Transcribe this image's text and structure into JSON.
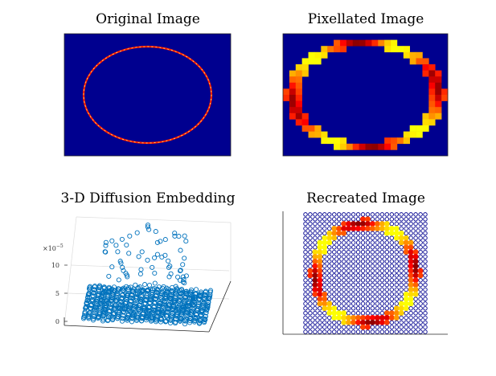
{
  "chart_data": [
    {
      "type": "heatmap",
      "title": "Original Image",
      "rows": 24,
      "cols": 32,
      "ring": {
        "center_col": 15.5,
        "center_row": 11.5,
        "radius_cols": 12.5,
        "radius_rows": 9.5
      },
      "colors": {
        "background": "#00008f",
        "ring": "#ff2000",
        "highlight": "#ffff80"
      }
    },
    {
      "type": "heatmap",
      "title": "Pixellated Image",
      "rows": 20,
      "cols": 26,
      "ring": {
        "center_col": 12.5,
        "center_row": 9.5,
        "radius_cols": 11.5,
        "radius_rows": 8.5
      },
      "colors": {
        "background": "#00008f",
        "ring": "#ff0000"
      }
    },
    {
      "type": "scatter3d",
      "title": "3-D Diffusion Embedding",
      "z_exponent_label": "×10",
      "z_exponent_power": "−5",
      "z_ticks": [
        0,
        5,
        10
      ],
      "zlim": [
        0,
        13
      ],
      "marker_color": "#0072bd"
    },
    {
      "type": "scatter",
      "title": "Recreated Image",
      "rows": 26,
      "cols": 26,
      "ring": {
        "center_col": 12.5,
        "center_row": 12.5,
        "radius_cols": 10.5,
        "radius_rows": 10.5
      },
      "colors": {
        "background": "#00008f",
        "ring": "#ff2000"
      }
    }
  ]
}
